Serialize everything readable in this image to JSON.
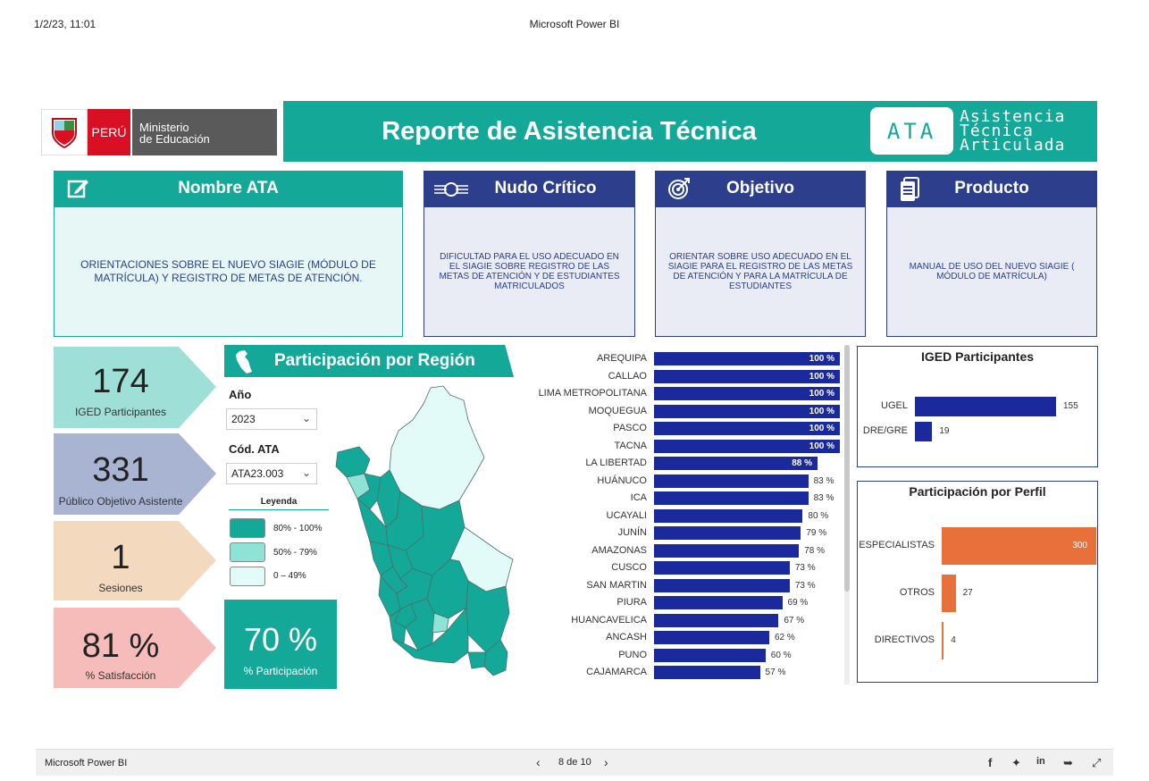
{
  "browser": {
    "datetime": "1/2/23, 11:01",
    "title": "Microsoft Power BI"
  },
  "header": {
    "peru_label": "PERÚ",
    "ministry_line1": "Ministerio",
    "ministry_line2": "de Educación",
    "report_title": "Reporte de Asistencia Técnica",
    "ata_logo": "ATA",
    "ata_line1": "Asistencia",
    "ata_line2": "Técnica",
    "ata_line3": "Articulada"
  },
  "cards": [
    {
      "title": "Nombre ATA",
      "icon": "edit-icon",
      "text": "ORIENTACIONES SOBRE EL NUEVO SIAGIE (MÓDULO DE MATRÍCULA) Y REGISTRO DE METAS DE ATENCIÓN."
    },
    {
      "title": "Nudo Crítico",
      "icon": "knot-icon",
      "text": "DIFICULTAD PARA EL USO ADECUADO EN EL SIAGIE SOBRE REGISTRO DE LAS METAS DE ATENCIÓN Y DE ESTUDIANTES MATRICULADOS"
    },
    {
      "title": "Objetivo",
      "icon": "target-icon",
      "text": "ORIENTAR SOBRE USO ADECUADO EN EL SIAGIE PARA EL REGISTRO DE LAS METAS DE ATENCIÓN Y PARA LA MATRÍCULA DE ESTUDIANTES"
    },
    {
      "title": "Producto",
      "icon": "document-icon",
      "text": "MANUAL DE USO DEL NUEVO SIAGIE ( MÓDULO DE MATRÍCULA)"
    }
  ],
  "kpis": [
    {
      "value": "174",
      "label": "IGED Participantes",
      "color": "#9ee0d8"
    },
    {
      "value": "331",
      "label": "Público Objetivo Asistente",
      "color": "#a9b4d3"
    },
    {
      "value": "1",
      "label": "Sesiones",
      "color": "#f3d9bd"
    },
    {
      "value": "81 %",
      "label": "% Satisfacción",
      "color": "#f6bcba"
    }
  ],
  "region": {
    "title": "Participación por Región",
    "year_label": "Año",
    "year_value": "2023",
    "code_label": "Cód. ATA",
    "code_value": "ATA23.003",
    "legend_title": "Leyenda",
    "legend": [
      {
        "label": "80% - 100%",
        "color": "#14a898"
      },
      {
        "label": "50% - 79%",
        "color": "#8fe3d6"
      },
      {
        "label": "0 – 49%",
        "color": "#e3fbf8"
      }
    ],
    "participation_value": "70 %",
    "participation_label": "% Participación"
  },
  "chart_data": [
    {
      "type": "bar",
      "orientation": "horizontal",
      "categories": [
        "AREQUIPA",
        "CALLAO",
        "LIMA METROPOLITANA",
        "MOQUEGUA",
        "PASCO",
        "TACNA",
        "LA LIBERTAD",
        "HUÁNUCO",
        "ICA",
        "UCAYALI",
        "JUNÍN",
        "AMAZONAS",
        "CUSCO",
        "SAN MARTIN",
        "PIURA",
        "HUANCAVELICA",
        "ANCASH",
        "PUNO",
        "CAJAMARCA"
      ],
      "values": [
        100,
        100,
        100,
        100,
        100,
        100,
        88,
        83,
        83,
        80,
        79,
        78,
        73,
        73,
        69,
        67,
        62,
        60,
        57
      ],
      "value_labels": [
        "100 %",
        "100 %",
        "100 %",
        "100 %",
        "100 %",
        "100 %",
        "88 %",
        "83 %",
        "83 %",
        "80 %",
        "79 %",
        "78 %",
        "73 %",
        "73 %",
        "69 %",
        "67 %",
        "62 %",
        "60 %",
        "57 %"
      ],
      "xlim": [
        0,
        100
      ],
      "color": "#1a2a9c"
    },
    {
      "type": "bar",
      "orientation": "horizontal",
      "title": "IGED Participantes",
      "categories": [
        "UGEL",
        "DRE/GRE"
      ],
      "values": [
        155,
        19
      ],
      "color": "#1a2a9c"
    },
    {
      "type": "bar",
      "orientation": "horizontal",
      "title": "Participación por Perfil",
      "categories": [
        "ESPECIALISTAS",
        "OTROS",
        "DIRECTIVOS"
      ],
      "values": [
        300,
        27,
        4
      ],
      "color": "#e8703a"
    }
  ],
  "footer": {
    "brand": "Microsoft Power BI",
    "page": "8 de 10"
  }
}
